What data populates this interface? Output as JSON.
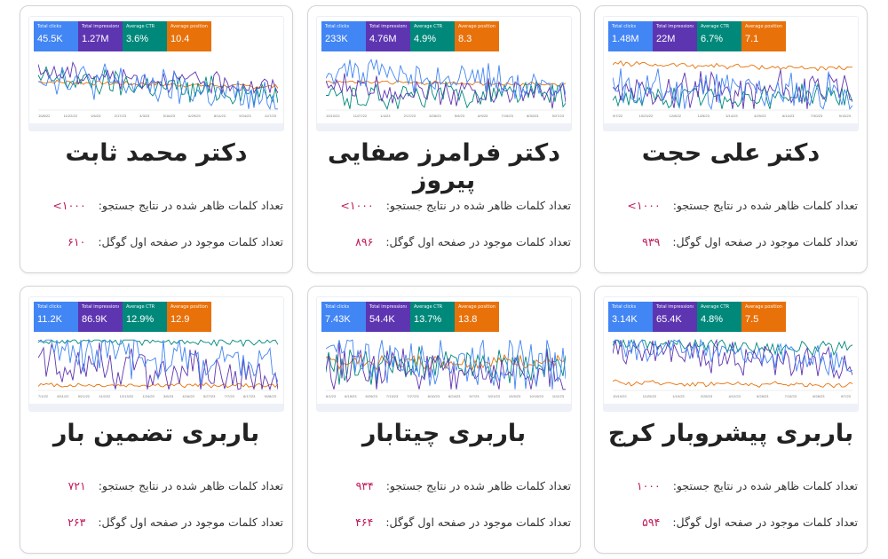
{
  "labels": {
    "keywords_shown": "تعداد کلمات ظاهر شده در نتایج جستجو:",
    "keywords_first_page": "تعداد کلمات موجود در صفحه اول گوگل:"
  },
  "colors": {
    "clicks": "#4285f4",
    "impressions": "#5e35b1",
    "ctr": "#00897b",
    "position": "#e8710a",
    "value_text": "#c2185b"
  },
  "metric_names": {
    "clicks": "Total clicks",
    "impressions": "Total impressions",
    "ctr": "Average CTR",
    "position": "Average position"
  },
  "cards": [
    {
      "title": "دکتر محمد ثابت",
      "keywords_shown": "۱۰۰۰>",
      "keywords_first_page": "۶۱۰",
      "clicks": "45.5K",
      "impressions": "1.27M",
      "ctr": "3.6%",
      "position": "10.4",
      "ticks": [
        "10/8/22",
        "11/22/22",
        "1/6/23",
        "2/17/23",
        "4/3/23",
        "5/16/23",
        "6/29/23",
        "8/11/23",
        "9/24/23",
        "11/7/23"
      ]
    },
    {
      "title": "دکتر فرامرز صفایی پیروز",
      "keywords_shown": "۱۰۰۰>",
      "keywords_first_page": "۸۹۶",
      "clicks": "233K",
      "impressions": "4.76M",
      "ctr": "4.9%",
      "position": "8.3",
      "ticks": [
        "10/10/22",
        "11/27/22",
        "1/4/23",
        "2/17/23",
        "3/28/23",
        "5/9/23",
        "6/9/23",
        "7/19/23",
        "8/30/23",
        "9/27/23"
      ]
    },
    {
      "title": "دکتر علی حجت",
      "keywords_shown": "۱۰۰۰>",
      "keywords_first_page": "۹۳۹",
      "clicks": "1.48M",
      "impressions": "22M",
      "ctr": "6.7%",
      "position": "7.1",
      "ticks": [
        "9/7/22",
        "10/23/22",
        "12/8/22",
        "1/25/23",
        "3/14/23",
        "4/29/23",
        "6/14/23",
        "7/30/23",
        "9/13/23"
      ]
    },
    {
      "title": "باربری تضمین بار",
      "keywords_shown": "۷۲۱",
      "keywords_first_page": "۲۶۳",
      "clicks": "11.2K",
      "impressions": "86.9K",
      "ctr": "12.9%",
      "position": "12.9",
      "ticks": [
        "7/1/22",
        "8/11/22",
        "9/21/22",
        "11/2/22",
        "12/13/22",
        "1/24/23",
        "3/6/23",
        "4/16/23",
        "5/27/23",
        "7/7/23",
        "8/17/23",
        "9/28/23"
      ]
    },
    {
      "title": "باربری چیتابار",
      "keywords_shown": "۹۳۴",
      "keywords_first_page": "۴۶۴",
      "clicks": "7.43K",
      "impressions": "54.4K",
      "ctr": "13.7%",
      "position": "13.8",
      "ticks": [
        "6/1/23",
        "6/15/23",
        "6/29/23",
        "7/13/23",
        "7/27/23",
        "8/10/23",
        "8/24/23",
        "9/7/23",
        "9/21/23",
        "10/5/23",
        "10/19/23",
        "11/2/23"
      ]
    },
    {
      "title": "باربری پیشروبار کرج",
      "keywords_shown": "۱۰۰۰",
      "keywords_first_page": "۵۹۴",
      "clicks": "3.14K",
      "impressions": "65.4K",
      "ctr": "4.8%",
      "position": "7.5",
      "ticks": [
        "10/10/22",
        "11/25/22",
        "1/10/23",
        "2/25/23",
        "4/12/23",
        "5/28/23",
        "7/13/23",
        "8/28/23",
        "9/7/23"
      ]
    }
  ]
}
